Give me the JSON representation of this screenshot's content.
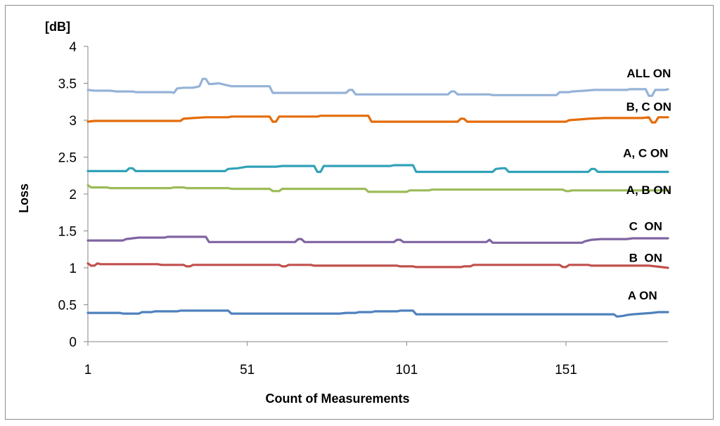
{
  "chart_data": {
    "type": "line",
    "xlabel": "Count of Measurements",
    "ylabel": "Loss",
    "yunit": "[dB]",
    "ylim": [
      0,
      4
    ],
    "xlim": [
      1,
      183
    ],
    "yticks": [
      "0",
      "0.5",
      "1",
      "1.5",
      "2",
      "2.5",
      "3",
      "3.5",
      "4"
    ],
    "xticks": [
      1,
      51,
      101,
      151
    ],
    "grid": false,
    "series": [
      {
        "name": "ALL ON",
        "color": "#95b3d7",
        "points": [
          [
            1,
            3.41
          ],
          [
            3,
            3.4
          ],
          [
            8,
            3.4
          ],
          [
            10,
            3.39
          ],
          [
            15,
            3.39
          ],
          [
            16,
            3.38
          ],
          [
            27,
            3.38
          ],
          [
            28,
            3.37
          ],
          [
            29,
            3.43
          ],
          [
            31,
            3.44
          ],
          [
            34,
            3.44
          ],
          [
            36,
            3.46
          ],
          [
            37,
            3.56
          ],
          [
            38,
            3.56
          ],
          [
            39,
            3.49
          ],
          [
            40,
            3.49
          ],
          [
            42,
            3.5
          ],
          [
            44,
            3.48
          ],
          [
            46,
            3.46
          ],
          [
            58,
            3.46
          ],
          [
            59,
            3.37
          ],
          [
            82,
            3.37
          ],
          [
            83,
            3.41
          ],
          [
            84,
            3.41
          ],
          [
            85,
            3.35
          ],
          [
            114,
            3.35
          ],
          [
            115,
            3.39
          ],
          [
            116,
            3.39
          ],
          [
            117,
            3.35
          ],
          [
            127,
            3.35
          ],
          [
            128,
            3.34
          ],
          [
            148,
            3.34
          ],
          [
            149,
            3.38
          ],
          [
            152,
            3.38
          ],
          [
            153,
            3.39
          ],
          [
            157,
            3.4
          ],
          [
            160,
            3.41
          ],
          [
            170,
            3.41
          ],
          [
            171,
            3.42
          ],
          [
            176,
            3.42
          ],
          [
            177,
            3.33
          ],
          [
            178,
            3.33
          ],
          [
            179,
            3.41
          ],
          [
            182,
            3.41
          ],
          [
            183,
            3.42
          ]
        ]
      },
      {
        "name": "B, C ON",
        "color": "#e46c0a",
        "points": [
          [
            1,
            2.98
          ],
          [
            3,
            2.99
          ],
          [
            30,
            2.99
          ],
          [
            31,
            3.02
          ],
          [
            34,
            3.03
          ],
          [
            38,
            3.04
          ],
          [
            45,
            3.04
          ],
          [
            46,
            3.05
          ],
          [
            58,
            3.05
          ],
          [
            59,
            2.98
          ],
          [
            60,
            2.98
          ],
          [
            61,
            3.05
          ],
          [
            73,
            3.05
          ],
          [
            74,
            3.06
          ],
          [
            89,
            3.06
          ],
          [
            90,
            2.98
          ],
          [
            117,
            2.98
          ],
          [
            118,
            3.02
          ],
          [
            119,
            3.02
          ],
          [
            120,
            2.98
          ],
          [
            151,
            2.98
          ],
          [
            152,
            3.0
          ],
          [
            155,
            3.01
          ],
          [
            158,
            3.02
          ],
          [
            163,
            3.03
          ],
          [
            175,
            3.03
          ],
          [
            177,
            3.04
          ],
          [
            178,
            2.97
          ],
          [
            179,
            2.97
          ],
          [
            180,
            3.04
          ],
          [
            183,
            3.04
          ]
        ]
      },
      {
        "name": "A, C ON",
        "color": "#31a2b8",
        "points": [
          [
            1,
            2.31
          ],
          [
            13,
            2.31
          ],
          [
            14,
            2.35
          ],
          [
            15,
            2.35
          ],
          [
            16,
            2.31
          ],
          [
            44,
            2.31
          ],
          [
            45,
            2.34
          ],
          [
            48,
            2.35
          ],
          [
            51,
            2.37
          ],
          [
            60,
            2.37
          ],
          [
            62,
            2.38
          ],
          [
            72,
            2.38
          ],
          [
            73,
            2.3
          ],
          [
            74,
            2.3
          ],
          [
            75,
            2.38
          ],
          [
            96,
            2.38
          ],
          [
            97,
            2.39
          ],
          [
            103,
            2.39
          ],
          [
            104,
            2.3
          ],
          [
            128,
            2.3
          ],
          [
            129,
            2.34
          ],
          [
            131,
            2.35
          ],
          [
            132,
            2.35
          ],
          [
            133,
            2.3
          ],
          [
            158,
            2.3
          ],
          [
            159,
            2.34
          ],
          [
            160,
            2.34
          ],
          [
            161,
            2.3
          ],
          [
            183,
            2.3
          ]
        ]
      },
      {
        "name": "A, B ON",
        "color": "#9bbb59",
        "points": [
          [
            1,
            2.12
          ],
          [
            2,
            2.09
          ],
          [
            7,
            2.09
          ],
          [
            8,
            2.08
          ],
          [
            27,
            2.08
          ],
          [
            28,
            2.09
          ],
          [
            31,
            2.09
          ],
          [
            32,
            2.08
          ],
          [
            45,
            2.08
          ],
          [
            46,
            2.07
          ],
          [
            58,
            2.07
          ],
          [
            59,
            2.04
          ],
          [
            61,
            2.04
          ],
          [
            62,
            2.07
          ],
          [
            88,
            2.07
          ],
          [
            89,
            2.03
          ],
          [
            101,
            2.03
          ],
          [
            102,
            2.05
          ],
          [
            108,
            2.05
          ],
          [
            109,
            2.06
          ],
          [
            150,
            2.06
          ],
          [
            151,
            2.04
          ],
          [
            152,
            2.04
          ],
          [
            153,
            2.05
          ],
          [
            183,
            2.05
          ]
        ]
      },
      {
        "name": "C  ON",
        "color": "#8064a2",
        "points": [
          [
            1,
            1.37
          ],
          [
            12,
            1.37
          ],
          [
            13,
            1.39
          ],
          [
            15,
            1.4
          ],
          [
            17,
            1.41
          ],
          [
            25,
            1.41
          ],
          [
            26,
            1.42
          ],
          [
            38,
            1.42
          ],
          [
            39,
            1.35
          ],
          [
            66,
            1.35
          ],
          [
            67,
            1.39
          ],
          [
            68,
            1.39
          ],
          [
            69,
            1.35
          ],
          [
            97,
            1.35
          ],
          [
            98,
            1.38
          ],
          [
            99,
            1.38
          ],
          [
            100,
            1.35
          ],
          [
            126,
            1.35
          ],
          [
            127,
            1.38
          ],
          [
            128,
            1.34
          ],
          [
            156,
            1.34
          ],
          [
            157,
            1.36
          ],
          [
            159,
            1.38
          ],
          [
            162,
            1.39
          ],
          [
            170,
            1.39
          ],
          [
            172,
            1.4
          ],
          [
            183,
            1.4
          ]
        ]
      },
      {
        "name": "B  ON",
        "color": "#c0504d",
        "points": [
          [
            1,
            1.06
          ],
          [
            2,
            1.03
          ],
          [
            3,
            1.03
          ],
          [
            4,
            1.06
          ],
          [
            5,
            1.05
          ],
          [
            23,
            1.05
          ],
          [
            24,
            1.04
          ],
          [
            31,
            1.04
          ],
          [
            32,
            1.02
          ],
          [
            33,
            1.02
          ],
          [
            34,
            1.04
          ],
          [
            61,
            1.04
          ],
          [
            62,
            1.02
          ],
          [
            63,
            1.02
          ],
          [
            64,
            1.04
          ],
          [
            71,
            1.04
          ],
          [
            72,
            1.03
          ],
          [
            98,
            1.03
          ],
          [
            99,
            1.02
          ],
          [
            103,
            1.02
          ],
          [
            104,
            1.01
          ],
          [
            118,
            1.01
          ],
          [
            119,
            1.02
          ],
          [
            121,
            1.02
          ],
          [
            122,
            1.04
          ],
          [
            149,
            1.04
          ],
          [
            150,
            1.01
          ],
          [
            151,
            1.01
          ],
          [
            152,
            1.04
          ],
          [
            158,
            1.04
          ],
          [
            159,
            1.03
          ],
          [
            177,
            1.03
          ],
          [
            179,
            1.02
          ],
          [
            181,
            1.01
          ],
          [
            183,
            1.0
          ]
        ]
      },
      {
        "name": "A ON",
        "color": "#4f81bd",
        "points": [
          [
            1,
            0.39
          ],
          [
            11,
            0.39
          ],
          [
            12,
            0.38
          ],
          [
            17,
            0.38
          ],
          [
            18,
            0.4
          ],
          [
            21,
            0.4
          ],
          [
            22,
            0.41
          ],
          [
            29,
            0.41
          ],
          [
            30,
            0.42
          ],
          [
            45,
            0.42
          ],
          [
            46,
            0.38
          ],
          [
            80,
            0.38
          ],
          [
            82,
            0.39
          ],
          [
            85,
            0.39
          ],
          [
            86,
            0.4
          ],
          [
            90,
            0.4
          ],
          [
            91,
            0.41
          ],
          [
            98,
            0.41
          ],
          [
            99,
            0.42
          ],
          [
            103,
            0.42
          ],
          [
            104,
            0.37
          ],
          [
            166,
            0.37
          ],
          [
            167,
            0.34
          ],
          [
            169,
            0.35
          ],
          [
            170,
            0.36
          ],
          [
            172,
            0.37
          ],
          [
            175,
            0.38
          ],
          [
            178,
            0.39
          ],
          [
            180,
            0.4
          ],
          [
            183,
            0.4
          ]
        ]
      }
    ],
    "labels": [
      {
        "series": "ALL ON",
        "x": 177,
        "y": 3.58
      },
      {
        "series": "B, C ON",
        "x": 177,
        "y": 3.13
      },
      {
        "series": "A, C ON",
        "x": 176,
        "y": 2.5
      },
      {
        "series": "A, B ON",
        "x": 177,
        "y": 2.0
      },
      {
        "series": "C  ON",
        "x": 176,
        "y": 1.51
      },
      {
        "series": "B  ON",
        "x": 176,
        "y": 1.08
      },
      {
        "series": "A ON",
        "x": 175,
        "y": 0.57
      }
    ]
  }
}
